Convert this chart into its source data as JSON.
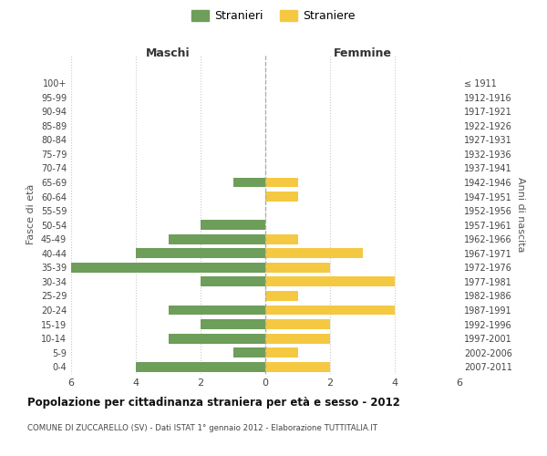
{
  "age_groups": [
    "0-4",
    "5-9",
    "10-14",
    "15-19",
    "20-24",
    "25-29",
    "30-34",
    "35-39",
    "40-44",
    "45-49",
    "50-54",
    "55-59",
    "60-64",
    "65-69",
    "70-74",
    "75-79",
    "80-84",
    "85-89",
    "90-94",
    "95-99",
    "100+"
  ],
  "birth_years": [
    "2007-2011",
    "2002-2006",
    "1997-2001",
    "1992-1996",
    "1987-1991",
    "1982-1986",
    "1977-1981",
    "1972-1976",
    "1967-1971",
    "1962-1966",
    "1957-1961",
    "1952-1956",
    "1947-1951",
    "1942-1946",
    "1937-1941",
    "1932-1936",
    "1927-1931",
    "1922-1926",
    "1917-1921",
    "1912-1916",
    "≤ 1911"
  ],
  "maschi": [
    4,
    1,
    3,
    2,
    3,
    0,
    2,
    6,
    4,
    3,
    2,
    0,
    0,
    1,
    0,
    0,
    0,
    0,
    0,
    0,
    0
  ],
  "femmine": [
    2,
    1,
    2,
    2,
    4,
    1,
    4,
    2,
    3,
    1,
    0,
    0,
    1,
    1,
    0,
    0,
    0,
    0,
    0,
    0,
    0
  ],
  "color_maschi": "#6d9e5a",
  "color_femmine": "#f5c842",
  "title": "Popolazione per cittadinanza straniera per età e sesso - 2012",
  "subtitle": "COMUNE DI ZUCCARELLO (SV) - Dati ISTAT 1° gennaio 2012 - Elaborazione TUTTITALIA.IT",
  "xlabel_left": "Maschi",
  "xlabel_right": "Femmine",
  "ylabel_left": "Fasce di età",
  "ylabel_right": "Anni di nascita",
  "legend_maschi": "Stranieri",
  "legend_femmine": "Straniere",
  "xlim": 6,
  "background_color": "#ffffff",
  "grid_color": "#c8c8c8"
}
